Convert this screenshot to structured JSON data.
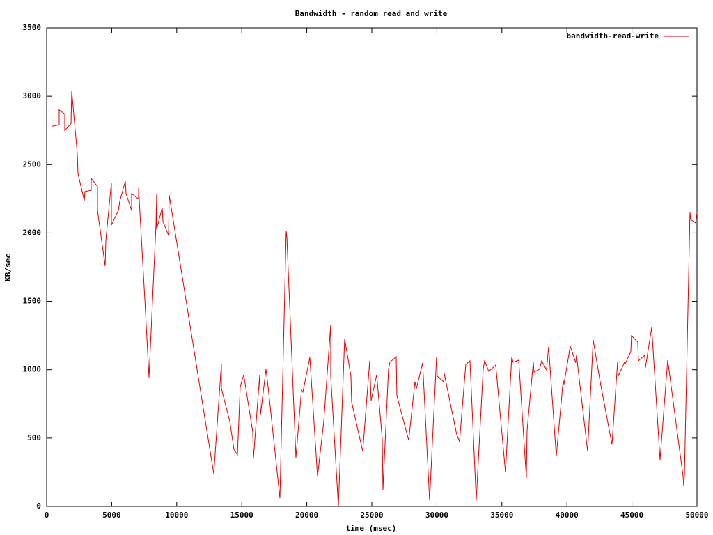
{
  "chart_data": {
    "type": "line",
    "title": "Bandwidth - random read and write",
    "xlabel": "time (msec)",
    "ylabel": "KB/sec",
    "x": [
      375,
      964,
      964,
      1392,
      1392,
      1874,
      1927,
      2355,
      2409,
      2891,
      2944,
      3426,
      3426,
      3908,
      3908,
      4497,
      4550,
      4978,
      4978,
      5514,
      5621,
      6049,
      6102,
      6531,
      6531,
      7066,
      7066,
      7548,
      7869,
      8404,
      8458,
      8458,
      8886,
      8940,
      9368,
      9422,
      12847,
      13436,
      13436,
      14078,
      14400,
      14667,
      14881,
      15149,
      15845,
      15898,
      16380,
      16434,
      16862,
      17023,
      17933,
      18414,
      18468,
      19164,
      19592,
      19699,
      20234,
      20823,
      21305,
      21840,
      21840,
      22429,
      22911,
      23393,
      23446,
      24302,
      24838,
      24945,
      25373,
      25801,
      25855,
      26283,
      26390,
      26872,
      26925,
      27835,
      28317,
      28424,
      28906,
      29441,
      29976,
      30030,
      30511,
      30565,
      31529,
      31743,
      32225,
      32546,
      33028,
      33563,
      33670,
      33991,
      34526,
      35276,
      35757,
      35864,
      36293,
      36882,
      36935,
      37417,
      37470,
      37898,
      38058,
      38433,
      38594,
      39183,
      39718,
      39772,
      40254,
      40682,
      40736,
      41592,
      42020,
      42556,
      43466,
      43894,
      43948,
      44430,
      44484,
      44912,
      44965,
      45447,
      45501,
      45982,
      46036,
      46518,
      47160,
      47749,
      48927,
      48981,
      49034,
      49463,
      49516,
      49891,
      50000
    ],
    "series": [
      {
        "name": "bandwidth-read-write",
        "color": "#e00000",
        "values": [
          2780,
          2790,
          2900,
          2870,
          2750,
          2800,
          3040,
          2580,
          2435,
          2236,
          2303,
          2313,
          2400,
          2339,
          2165,
          1758,
          1946,
          2369,
          2058,
          2165,
          2232,
          2379,
          2288,
          2165,
          2288,
          2247,
          2328,
          1513,
          943,
          2058,
          2288,
          2028,
          2186,
          2084,
          1982,
          2277,
          239,
          1044,
          861,
          622,
          418,
          377,
          876,
          963,
          545,
          352,
          963,
          667,
          1004,
          876,
          61,
          2013,
          1972,
          357,
          851,
          836,
          1090,
          219,
          622,
          1330,
          953,
          0,
          1228,
          953,
          764,
          403,
          1065,
          774,
          963,
          494,
          122,
          1004,
          1055,
          1095,
          810,
          484,
          912,
          861,
          1050,
          46,
          1090,
          953,
          912,
          973,
          525,
          474,
          1039,
          1065,
          46,
          1004,
          1065,
          988,
          1034,
          250,
          1095,
          1055,
          1070,
          209,
          555,
          1055,
          983,
          1004,
          1065,
          999,
          1167,
          367,
          927,
          892,
          1172,
          1050,
          1106,
          403,
          1218,
          912,
          453,
          1055,
          953,
          1055,
          1044,
          1131,
          1248,
          1202,
          1065,
          1106,
          1014,
          1309,
          341,
          1070,
          224,
          148,
          224,
          2150,
          2099,
          2074,
          2150
        ]
      }
    ],
    "xlim": [
      0,
      50000
    ],
    "ylim": [
      0,
      3500
    ],
    "xticks": [
      0,
      5000,
      10000,
      15000,
      20000,
      25000,
      30000,
      35000,
      40000,
      45000,
      50000
    ],
    "yticks": [
      0,
      500,
      1000,
      1500,
      2000,
      2500,
      3000,
      3500
    ],
    "legend": "top-right"
  }
}
